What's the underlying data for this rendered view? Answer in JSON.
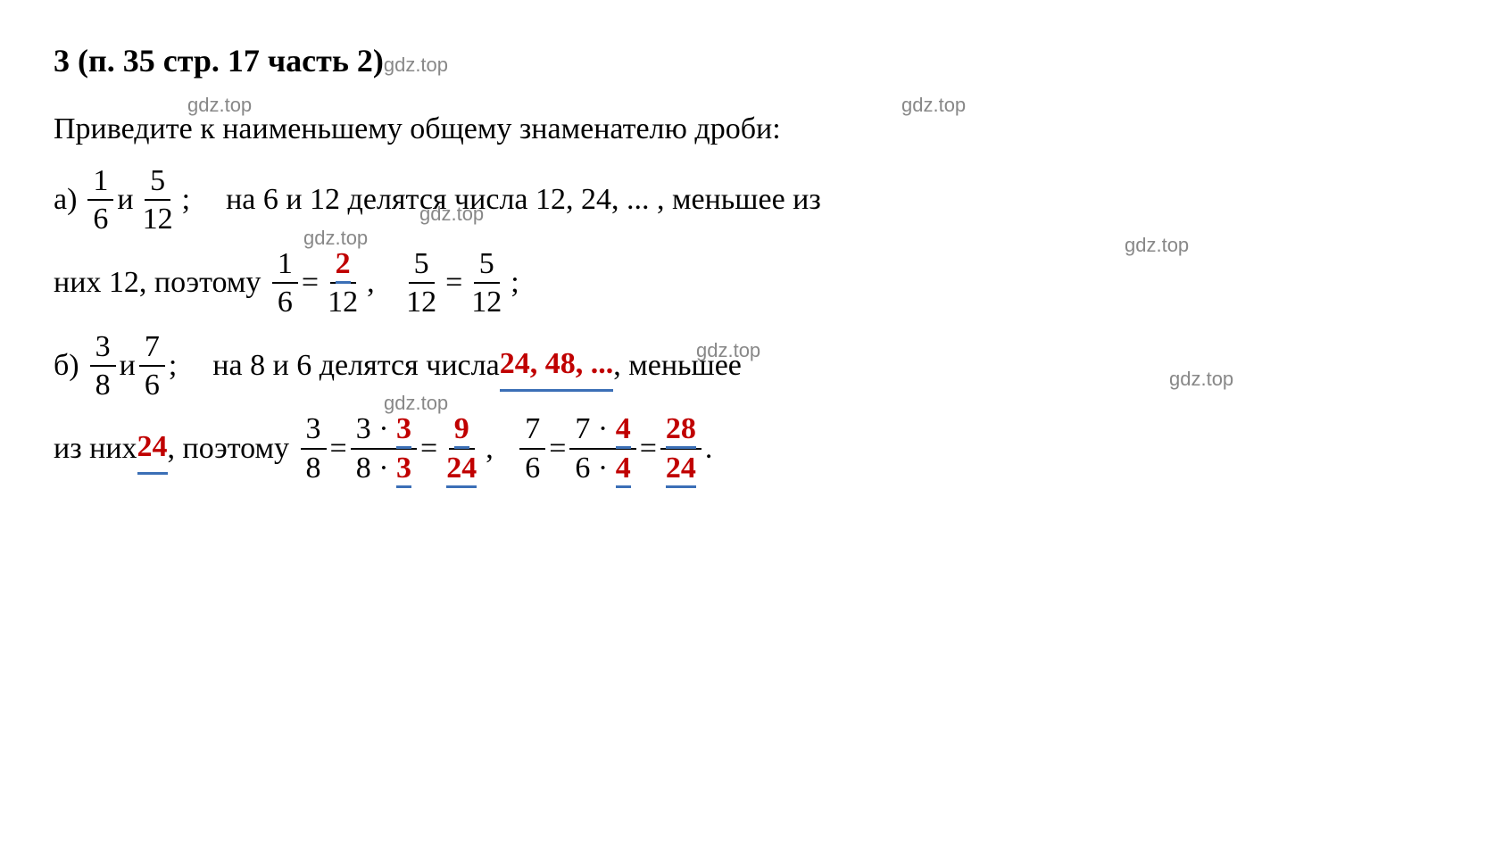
{
  "title": "3 (п. 35 стр. 17 часть 2)",
  "watermark": "gdz.top",
  "prompt": "Приведите к наименьшему общему знаменателю дроби:",
  "colors": {
    "text": "#000000",
    "red": "#c00000",
    "underline": "#3b6fb6",
    "watermark": "#888888",
    "background": "#ffffff"
  },
  "parts": {
    "a": {
      "label": "а)",
      "frac1": {
        "num": "1",
        "den": "6"
      },
      "conj": " и ",
      "frac2": {
        "num": "5",
        "den": "12"
      },
      "semicolon": ";",
      "text1": "на 6 и 12 делятся числа 12, 24, ... , меньшее из",
      "text2_pre": "них 12,",
      "text2_mid": "поэтому",
      "eq1_left": {
        "num": "1",
        "den": "6"
      },
      "eq1_right": {
        "num": "2",
        "den": "12",
        "num_is_answer": true
      },
      "eq2_left": {
        "num": "5",
        "den": "12"
      },
      "eq2_right": {
        "num": "5",
        "den": "12"
      }
    },
    "b": {
      "label": "б)",
      "frac1": {
        "num": "3",
        "den": "8"
      },
      "conj": " и ",
      "frac2": {
        "num": "7",
        "den": "6"
      },
      "semicolon": ";",
      "text1_pre": "на 8 и 6 делятся числа ",
      "text1_answer": "24, 48, ...",
      "text1_post": " , меньшее",
      "text2_pre": "из них ",
      "text2_answer": "24",
      "text2_mid": ", поэтому",
      "eq1_left": {
        "num": "3",
        "den": "8"
      },
      "eq1_mid": {
        "num_a": "3 · ",
        "num_b": "3",
        "den_a": "8 · ",
        "den_b": "3"
      },
      "eq1_right": {
        "num": "9",
        "den": "24"
      },
      "eq2_left": {
        "num": "7",
        "den": "6"
      },
      "eq2_mid": {
        "num_a": "7 · ",
        "num_b": "4",
        "den_a": "6 · ",
        "den_b": "4"
      },
      "eq2_right": {
        "num": "28",
        "den": "24"
      }
    }
  }
}
